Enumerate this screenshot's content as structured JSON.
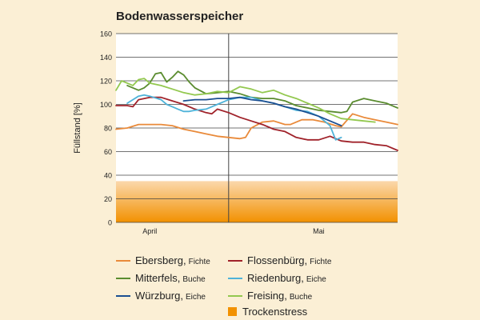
{
  "chart_data": {
    "type": "line",
    "title": "Bodenwasserspeicher",
    "ylabel": "Füllstand [%]",
    "xlabel": "",
    "ylim": [
      0,
      160
    ],
    "yticks": [
      0,
      20,
      40,
      60,
      80,
      100,
      120,
      140,
      160
    ],
    "xlim": [
      0,
      50
    ],
    "month_labels": [
      {
        "label": "April",
        "x": 6
      },
      {
        "label": "Mai",
        "x": 36
      }
    ],
    "month_divider_x": 20,
    "grid": true,
    "stress_band": {
      "label": "Trockenstress",
      "from": 0,
      "to": 35,
      "color_top": "#fbd8ac",
      "color_bottom": "#f29100"
    },
    "series": [
      {
        "name": "Ebersberg,",
        "subname": "Fichte",
        "color": "#e98a3a",
        "x": [
          0,
          2,
          4,
          6,
          8,
          10,
          12,
          14,
          16,
          18,
          20,
          22,
          23,
          24,
          26,
          28,
          30,
          31,
          33,
          35,
          37,
          39,
          40,
          42,
          44,
          46,
          48,
          50
        ],
        "values": [
          79,
          80,
          83,
          83,
          83,
          82,
          79,
          77,
          75,
          73,
          72,
          71,
          72,
          80,
          85,
          86,
          83,
          83,
          87,
          87,
          85,
          82,
          81,
          92,
          89,
          87,
          85,
          83
        ]
      },
      {
        "name": "Flossenbürg,",
        "subname": "Fichte",
        "color": "#a0222a",
        "x": [
          0,
          2,
          3,
          4,
          6,
          8,
          10,
          12,
          14,
          16,
          17,
          18,
          20,
          22,
          24,
          26,
          28,
          30,
          32,
          34,
          36,
          38,
          39,
          40,
          42,
          44,
          46,
          48,
          50
        ],
        "values": [
          99,
          99,
          98,
          104,
          106,
          106,
          103,
          100,
          96,
          93,
          92,
          96,
          93,
          89,
          86,
          83,
          79,
          77,
          72,
          70,
          70,
          73,
          71,
          69,
          68,
          68,
          66,
          65,
          61
        ]
      },
      {
        "name": "Mitterfels,",
        "subname": "Buche",
        "color": "#5a8c2f",
        "x": [
          2,
          4,
          5,
          6,
          7,
          8,
          9,
          10,
          11,
          12,
          13,
          14,
          16,
          18,
          20,
          22,
          24,
          26,
          28,
          30,
          32,
          34,
          36,
          38,
          40,
          41,
          42,
          44,
          46,
          48,
          50
        ],
        "values": [
          116,
          112,
          114,
          118,
          126,
          127,
          119,
          123,
          128,
          125,
          119,
          114,
          109,
          110,
          111,
          109,
          106,
          105,
          105,
          103,
          99,
          97,
          95,
          94,
          93,
          94,
          102,
          105,
          103,
          101,
          97
        ]
      },
      {
        "name": "Riedenburg,",
        "subname": "Eiche",
        "color": "#4fb3d9",
        "x": [
          2,
          3,
          4,
          5,
          6,
          8,
          9,
          10,
          11,
          12,
          13,
          14,
          16,
          18,
          20,
          22,
          24,
          26,
          28,
          30,
          32,
          34,
          36,
          37,
          38,
          39,
          40
        ],
        "values": [
          101,
          104,
          107,
          108,
          107,
          104,
          100,
          98,
          96,
          94,
          94,
          95,
          96,
          100,
          104,
          106,
          106,
          103,
          101,
          98,
          95,
          94,
          90,
          86,
          82,
          70,
          72
        ]
      },
      {
        "name": "Würzburg,",
        "subname": "Eiche",
        "color": "#1b4f91",
        "x": [
          12,
          14,
          16,
          18,
          20,
          22,
          24,
          26,
          28,
          30,
          32,
          34,
          36,
          38,
          40
        ],
        "values": [
          103,
          104,
          104,
          105,
          105,
          106,
          104,
          103,
          101,
          98,
          96,
          93,
          90,
          86,
          82
        ]
      },
      {
        "name": "Freising,",
        "subname": "Buche",
        "color": "#93c84f",
        "x": [
          0,
          1,
          2,
          3,
          4,
          5,
          6,
          8,
          10,
          12,
          14,
          16,
          18,
          20,
          22,
          24,
          26,
          28,
          30,
          32,
          34,
          36,
          38,
          40,
          42,
          44,
          46
        ],
        "values": [
          112,
          120,
          118,
          116,
          121,
          122,
          118,
          116,
          113,
          110,
          108,
          109,
          111,
          110,
          115,
          113,
          110,
          112,
          108,
          105,
          101,
          97,
          92,
          88,
          87,
          86,
          85
        ]
      }
    ]
  }
}
